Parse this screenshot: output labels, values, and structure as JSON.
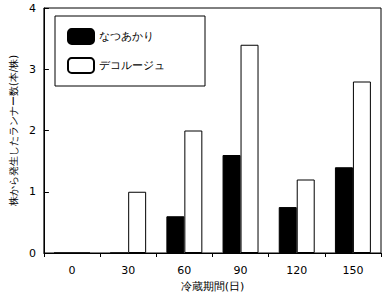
{
  "chart_data": {
    "type": "bar",
    "x_label": "冷蔵期間(日)",
    "y_label": "株から発生したランナー数(本/株)",
    "categories": [
      "0",
      "30",
      "60",
      "90",
      "120",
      "150"
    ],
    "series": [
      {
        "name": "なつあかり",
        "color": "#000000",
        "values": [
          0,
          0,
          0.6,
          1.6,
          0.75,
          1.4
        ]
      },
      {
        "name": "デコルージュ",
        "color": "#ffffff",
        "values": [
          0,
          1.0,
          2.0,
          3.4,
          1.2,
          2.8
        ]
      }
    ],
    "ylim": [
      0,
      4
    ],
    "yticks": [
      0,
      1,
      2,
      3,
      4
    ],
    "grid": false,
    "legend": "upper left"
  }
}
